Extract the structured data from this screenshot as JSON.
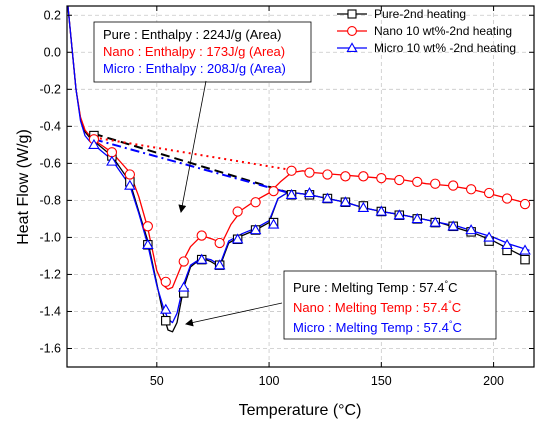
{
  "chart_data": {
    "type": "line",
    "xlabel": "Temperature (°C)",
    "ylabel": "Heat Flow (W/g)",
    "xlim": [
      10,
      218
    ],
    "ylim": [
      -1.7,
      0.25
    ],
    "xticks": [
      50,
      100,
      150,
      200
    ],
    "yticks": [
      0.2,
      0.0,
      -0.2,
      -0.4,
      -0.6,
      -0.8,
      -1.0,
      -1.2,
      -1.4,
      -1.6
    ],
    "ytick_labels": [
      "0.2",
      "0.0",
      "-0.2",
      "-0.4",
      "-0.6",
      "-0.8",
      "-1.0",
      "-1.2",
      "-1.4",
      "-1.6"
    ],
    "grid": true,
    "legend_position": "top-right",
    "series": [
      {
        "name": "Pure-2nd heating",
        "color": "#000000",
        "marker": "square",
        "x": [
          10,
          12,
          14,
          16,
          18,
          20,
          22,
          24,
          30,
          38,
          42,
          46,
          50,
          53,
          55,
          57,
          59,
          62,
          65,
          70,
          74,
          78,
          82,
          88,
          94,
          100,
          104,
          108,
          112,
          118,
          126,
          134,
          142,
          150,
          160,
          168,
          176,
          184,
          192,
          200,
          208,
          216
        ],
        "y": [
          0.3,
          0.05,
          -0.2,
          -0.36,
          -0.43,
          -0.46,
          -0.48,
          -0.5,
          -0.56,
          -0.7,
          -0.86,
          -1.02,
          -1.25,
          -1.42,
          -1.5,
          -1.51,
          -1.46,
          -1.27,
          -1.16,
          -1.11,
          -1.13,
          -1.16,
          -1.03,
          -0.99,
          -0.96,
          -0.92,
          -0.79,
          -0.76,
          -0.76,
          -0.77,
          -0.79,
          -0.81,
          -0.84,
          -0.86,
          -0.88,
          -0.9,
          -0.92,
          -0.95,
          -0.98,
          -1.02,
          -1.07,
          -1.12
        ],
        "marker_x": [
          22,
          30,
          38,
          46,
          54,
          62,
          70,
          78,
          86,
          94,
          102,
          110,
          118,
          126,
          134,
          142,
          150,
          158,
          166,
          174,
          182,
          190,
          198,
          206,
          214
        ],
        "marker_y": [
          -0.45,
          -0.56,
          -0.7,
          -1.04,
          -1.45,
          -1.3,
          -1.12,
          -1.15,
          -1.01,
          -0.96,
          -0.92,
          -0.77,
          -0.77,
          -0.79,
          -0.81,
          -0.83,
          -0.86,
          -0.88,
          -0.9,
          -0.92,
          -0.94,
          -0.97,
          -1.02,
          -1.07,
          -1.12
        ]
      },
      {
        "name": "Nano 10 wt%-2nd heating",
        "color": "#ff0000",
        "marker": "circle",
        "x": [
          10,
          12,
          14,
          16,
          18,
          20,
          22,
          24,
          30,
          38,
          42,
          46,
          50,
          53,
          55,
          57,
          60,
          62,
          65,
          70,
          75,
          79,
          83,
          88,
          94,
          100,
          105,
          110,
          115,
          120,
          130,
          140,
          150,
          160,
          170,
          180,
          190,
          200,
          210,
          216
        ],
        "y": [
          0.3,
          0.05,
          -0.2,
          -0.35,
          -0.42,
          -0.45,
          -0.47,
          -0.49,
          -0.54,
          -0.65,
          -0.78,
          -0.95,
          -1.18,
          -1.26,
          -1.28,
          -1.27,
          -1.18,
          -1.12,
          -1.05,
          -0.99,
          -1.01,
          -1.03,
          -0.93,
          -0.85,
          -0.8,
          -0.76,
          -0.7,
          -0.65,
          -0.64,
          -0.65,
          -0.66,
          -0.67,
          -0.68,
          -0.69,
          -0.71,
          -0.72,
          -0.74,
          -0.77,
          -0.8,
          -0.82
        ],
        "marker_x": [
          22,
          30,
          38,
          46,
          54,
          62,
          70,
          78,
          86,
          94,
          102,
          110,
          118,
          126,
          134,
          142,
          150,
          158,
          166,
          174,
          182,
          190,
          198,
          206,
          214
        ],
        "marker_y": [
          -0.47,
          -0.54,
          -0.66,
          -0.94,
          -1.24,
          -1.13,
          -0.99,
          -1.03,
          -0.86,
          -0.81,
          -0.75,
          -0.64,
          -0.65,
          -0.66,
          -0.67,
          -0.67,
          -0.68,
          -0.69,
          -0.7,
          -0.71,
          -0.72,
          -0.74,
          -0.76,
          -0.79,
          -0.82
        ]
      },
      {
        "name": "Micro 10 wt% -2nd heating",
        "color": "#0000ff",
        "marker": "triangle",
        "x": [
          10,
          12,
          14,
          16,
          18,
          20,
          22,
          24,
          30,
          38,
          42,
          46,
          50,
          53,
          55,
          57,
          59,
          62,
          65,
          70,
          74,
          78,
          82,
          88,
          94,
          100,
          104,
          108,
          112,
          118,
          126,
          134,
          142,
          150,
          160,
          168,
          176,
          184,
          192,
          200,
          208,
          216
        ],
        "y": [
          0.3,
          0.05,
          -0.2,
          -0.37,
          -0.45,
          -0.48,
          -0.5,
          -0.52,
          -0.58,
          -0.72,
          -0.87,
          -1.04,
          -1.26,
          -1.38,
          -1.44,
          -1.46,
          -1.41,
          -1.25,
          -1.15,
          -1.11,
          -1.12,
          -1.15,
          -1.02,
          -0.98,
          -0.95,
          -0.91,
          -0.79,
          -0.76,
          -0.76,
          -0.77,
          -0.79,
          -0.81,
          -0.84,
          -0.86,
          -0.88,
          -0.9,
          -0.92,
          -0.94,
          -0.97,
          -1.0,
          -1.04,
          -1.07
        ],
        "marker_x": [
          22,
          30,
          38,
          46,
          54,
          62,
          70,
          78,
          86,
          94,
          102,
          110,
          118,
          126,
          134,
          142,
          150,
          158,
          166,
          174,
          182,
          190,
          198,
          206,
          214
        ],
        "marker_y": [
          -0.5,
          -0.59,
          -0.72,
          -1.04,
          -1.39,
          -1.27,
          -1.12,
          -1.15,
          -1.01,
          -0.96,
          -0.93,
          -0.77,
          -0.76,
          -0.79,
          -0.81,
          -0.84,
          -0.86,
          -0.88,
          -0.9,
          -0.92,
          -0.94,
          -0.96,
          -1.0,
          -1.04,
          -1.07
        ]
      }
    ],
    "baselines": [
      {
        "series": "Pure",
        "color": "#000000",
        "style": "dash",
        "x": [
          22,
          112
        ],
        "y": [
          -0.44,
          -0.77
        ]
      },
      {
        "series": "Nano",
        "color": "#ff0000",
        "style": "dot",
        "x": [
          22,
          112
        ],
        "y": [
          -0.46,
          -0.64
        ]
      },
      {
        "series": "Micro",
        "color": "#0000ff",
        "style": "dashdot",
        "x": [
          22,
          112
        ],
        "y": [
          -0.47,
          -0.77
        ]
      }
    ],
    "annotations": {
      "enthalpy": [
        {
          "series": "Pure",
          "label": "Pure",
          "text": ": Enthalpy : 224J/g (Area)",
          "color": "#000000"
        },
        {
          "series": "Nano",
          "label": "Nano",
          "text": ": Enthalpy : 173J/g (Area)",
          "color": "#ff0000"
        },
        {
          "series": "Micro",
          "label": "Micro",
          "text": ": Enthalpy : 208J/g (Area)",
          "color": "#0000ff"
        }
      ],
      "melting": [
        {
          "series": "Pure",
          "label": "Pure",
          "text": ": Melting Temp : 57.4",
          "unit": "°C",
          "color": "#000000"
        },
        {
          "series": "Nano",
          "label": "Nano",
          "text": ": Melting Temp : 57.4",
          "unit": "°C",
          "color": "#ff0000"
        },
        {
          "series": "Micro",
          "label": "Micro",
          "text": ": Melting Temp : 57.4",
          "unit": "°C",
          "color": "#0000ff"
        }
      ]
    }
  }
}
